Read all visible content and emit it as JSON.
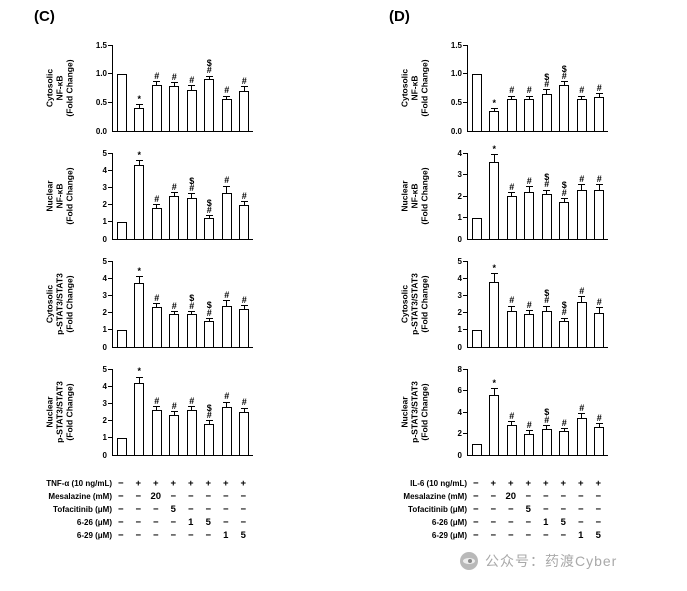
{
  "page": {
    "background": "#ffffff"
  },
  "style": {
    "bar_fill": "#ffffff",
    "bar_border": "#000000",
    "axis_color": "#000000",
    "text_color": "#000000",
    "watermark_color": "#a9a9a9"
  },
  "panels": [
    {
      "id": "C",
      "label": "(C)",
      "table": {
        "rows": [
          {
            "label": "TNF-α (10 ng/mL)",
            "cells": [
              "−",
              "+",
              "+",
              "+",
              "+",
              "+",
              "+",
              "+"
            ]
          },
          {
            "label": "Mesalazine (mM)",
            "cells": [
              "−",
              "−",
              "20",
              "−",
              "−",
              "−",
              "−",
              "−"
            ]
          },
          {
            "label": "Tofacitinib (μM)",
            "cells": [
              "−",
              "−",
              "−",
              "5",
              "−",
              "−",
              "−",
              "−"
            ]
          },
          {
            "label": "6-26 (μM)",
            "cells": [
              "−",
              "−",
              "−",
              "−",
              "1",
              "5",
              "−",
              "−"
            ]
          },
          {
            "label": "6-29 (μM)",
            "cells": [
              "−",
              "−",
              "−",
              "−",
              "−",
              "−",
              "1",
              "5"
            ]
          }
        ]
      }
    },
    {
      "id": "D",
      "label": "(D)",
      "table": {
        "rows": [
          {
            "label": "IL-6 (10 ng/mL)",
            "cells": [
              "−",
              "+",
              "+",
              "+",
              "+",
              "+",
              "+",
              "+"
            ]
          },
          {
            "label": "Mesalazine (mM)",
            "cells": [
              "−",
              "−",
              "20",
              "−",
              "−",
              "−",
              "−",
              "−"
            ]
          },
          {
            "label": "Tofacitinib (μM)",
            "cells": [
              "−",
              "−",
              "−",
              "5",
              "−",
              "−",
              "−",
              "−"
            ]
          },
          {
            "label": "6-26 (μM)",
            "cells": [
              "−",
              "−",
              "−",
              "−",
              "1",
              "5",
              "−",
              "−"
            ]
          },
          {
            "label": "6-29 (μM)",
            "cells": [
              "−",
              "−",
              "−",
              "−",
              "−",
              "−",
              "1",
              "5"
            ]
          }
        ]
      }
    }
  ],
  "chart_data": [
    {
      "type": "bar",
      "panel": "C",
      "index": 1,
      "ylabel_lines": [
        "Cytosolic",
        "NF-κB",
        "(Fold Change)"
      ],
      "ylim": [
        0,
        1.5
      ],
      "yticks": [
        0,
        0.5,
        1.0,
        1.5
      ],
      "tick_format": "1dp",
      "values": [
        1.0,
        0.4,
        0.8,
        0.78,
        0.72,
        0.9,
        0.55,
        0.7
      ],
      "errors": [
        0,
        0.05,
        0.06,
        0.05,
        0.06,
        0.05,
        0.05,
        0.07
      ],
      "annotations": [
        "",
        "*",
        "#",
        "#",
        "#",
        "$\n#",
        "#",
        "#"
      ]
    },
    {
      "type": "bar",
      "panel": "C",
      "index": 2,
      "ylabel_lines": [
        "Nuclear",
        "NF-κB",
        "(Fold Change)"
      ],
      "ylim": [
        0,
        5
      ],
      "yticks": [
        0,
        1,
        2,
        3,
        4,
        5
      ],
      "tick_format": "int",
      "values": [
        1.0,
        4.3,
        1.8,
        2.5,
        2.4,
        1.2,
        2.7,
        2.0
      ],
      "errors": [
        0,
        0.25,
        0.15,
        0.15,
        0.2,
        0.12,
        0.35,
        0.15
      ],
      "annotations": [
        "",
        "*",
        "#",
        "#",
        "$\n#",
        "$\n#",
        "#",
        "#"
      ]
    },
    {
      "type": "bar",
      "panel": "C",
      "index": 3,
      "ylabel_lines": [
        "Cytosolic",
        "p-STAT3/STAT3",
        "(Fold Change)"
      ],
      "ylim": [
        0,
        5
      ],
      "yticks": [
        0,
        1,
        2,
        3,
        4,
        5
      ],
      "tick_format": "int",
      "values": [
        1.0,
        3.7,
        2.3,
        1.9,
        1.9,
        1.5,
        2.4,
        2.2
      ],
      "errors": [
        0,
        0.35,
        0.2,
        0.15,
        0.15,
        0.12,
        0.25,
        0.2
      ],
      "annotations": [
        "",
        "*",
        "#",
        "#",
        "$\n#",
        "$\n#",
        "#",
        "#"
      ]
    },
    {
      "type": "bar",
      "panel": "C",
      "index": 4,
      "ylabel_lines": [
        "Nuclear",
        "p-STAT3/STAT3",
        "(Fold Change)"
      ],
      "ylim": [
        0,
        5
      ],
      "yticks": [
        0,
        1,
        2,
        3,
        4,
        5
      ],
      "tick_format": "int",
      "values": [
        1.0,
        4.2,
        2.6,
        2.3,
        2.6,
        1.8,
        2.8,
        2.5
      ],
      "errors": [
        0,
        0.3,
        0.2,
        0.2,
        0.2,
        0.15,
        0.25,
        0.2
      ],
      "annotations": [
        "",
        "*",
        "#",
        "#",
        "#",
        "$\n#",
        "#",
        "#"
      ]
    },
    {
      "type": "bar",
      "panel": "D",
      "index": 1,
      "ylabel_lines": [
        "Cytosolic",
        "NF-κB",
        "(Fold Change)"
      ],
      "ylim": [
        0,
        1.5
      ],
      "yticks": [
        0,
        0.5,
        1.0,
        1.5
      ],
      "tick_format": "1dp",
      "values": [
        1.0,
        0.35,
        0.55,
        0.55,
        0.65,
        0.8,
        0.55,
        0.6
      ],
      "errors": [
        0,
        0.04,
        0.05,
        0.05,
        0.06,
        0.05,
        0.05,
        0.05
      ],
      "annotations": [
        "",
        "*",
        "#",
        "#",
        "$\n#",
        "$\n#",
        "#",
        "#"
      ]
    },
    {
      "type": "bar",
      "panel": "D",
      "index": 2,
      "ylabel_lines": [
        "Nuclear",
        "NF-κB",
        "(Fold Change)"
      ],
      "ylim": [
        0,
        4
      ],
      "yticks": [
        0,
        1,
        2,
        3,
        4
      ],
      "tick_format": "int",
      "values": [
        1.0,
        3.6,
        2.0,
        2.2,
        2.1,
        1.7,
        2.3,
        2.3
      ],
      "errors": [
        0,
        0.3,
        0.15,
        0.2,
        0.15,
        0.15,
        0.2,
        0.2
      ],
      "annotations": [
        "",
        "*",
        "#",
        "#",
        "$\n#",
        "$\n#",
        "#",
        "#"
      ]
    },
    {
      "type": "bar",
      "panel": "D",
      "index": 3,
      "ylabel_lines": [
        "Cytosolic",
        "p-STAT3/STAT3",
        "(Fold Change)"
      ],
      "ylim": [
        0,
        5
      ],
      "yticks": [
        0,
        1,
        2,
        3,
        4,
        5
      ],
      "tick_format": "int",
      "values": [
        1.0,
        3.8,
        2.1,
        1.9,
        2.1,
        1.5,
        2.6,
        2.0
      ],
      "errors": [
        0,
        0.45,
        0.25,
        0.2,
        0.25,
        0.15,
        0.3,
        0.25
      ],
      "annotations": [
        "",
        "*",
        "#",
        "#",
        "$\n#",
        "$\n#",
        "#",
        "#"
      ]
    },
    {
      "type": "bar",
      "panel": "D",
      "index": 4,
      "ylabel_lines": [
        "Nuclear",
        "p-STAT3/STAT3",
        "(Fold Change)"
      ],
      "ylim": [
        0,
        8
      ],
      "yticks": [
        0,
        2,
        4,
        6,
        8
      ],
      "tick_format": "int",
      "values": [
        1.0,
        5.6,
        2.8,
        2.0,
        2.4,
        2.2,
        3.4,
        2.6
      ],
      "errors": [
        0,
        0.5,
        0.3,
        0.25,
        0.3,
        0.25,
        0.4,
        0.3
      ],
      "annotations": [
        "",
        "*",
        "#",
        "#",
        "$\n#",
        "#",
        "#",
        "#"
      ]
    }
  ],
  "watermark": {
    "icon": "eye-logo-icon",
    "text": "公众号：药渡Cyber",
    "color": "#a9a9a9"
  }
}
